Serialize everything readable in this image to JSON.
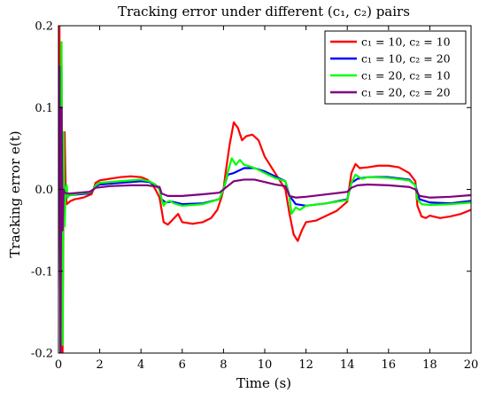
{
  "chart_data": {
    "type": "line",
    "title": "Tracking error under different (c₁, c₂) pairs",
    "xlabel": "Time (s)",
    "ylabel": "Tracking error e(t)",
    "xlim": [
      0,
      20
    ],
    "ylim": [
      -0.2,
      0.2
    ],
    "xticks": [
      "0",
      "2",
      "4",
      "6",
      "8",
      "10",
      "12",
      "14",
      "16",
      "18",
      "20"
    ],
    "yticks": [
      "-0.2",
      "-0.1",
      "0.0",
      "0.1",
      "0.2"
    ],
    "grid": false,
    "legend_position": "top-right",
    "series": [
      {
        "name": "c₁ = 10,  c₂ = 10",
        "color": "#ff0000",
        "x": [
          0,
          0.05,
          0.1,
          0.15,
          0.2,
          0.25,
          0.3,
          0.35,
          0.4,
          0.5,
          0.6,
          0.8,
          1.0,
          1.2,
          1.4,
          1.6,
          1.7,
          1.8,
          2.0,
          2.5,
          3.0,
          3.5,
          4.0,
          4.3,
          4.5,
          4.7,
          4.9,
          5.0,
          5.1,
          5.3,
          5.5,
          5.8,
          6.0,
          6.5,
          7.0,
          7.4,
          7.7,
          7.9,
          8.0,
          8.1,
          8.3,
          8.5,
          8.7,
          8.9,
          9.1,
          9.4,
          9.7,
          10.0,
          10.5,
          11.0,
          11.2,
          11.4,
          11.6,
          11.8,
          12.0,
          12.5,
          13.0,
          13.5,
          14.0,
          14.2,
          14.4,
          14.6,
          15.0,
          15.5,
          16.0,
          16.5,
          17.0,
          17.3,
          17.4,
          17.6,
          17.8,
          18.0,
          18.5,
          19.0,
          19.5,
          20.0
        ],
        "y": [
          0,
          0.2,
          -0.2,
          0.15,
          -0.2,
          0.0,
          0.07,
          0.0,
          -0.018,
          -0.016,
          -0.014,
          -0.012,
          -0.011,
          -0.01,
          -0.008,
          -0.006,
          0.0,
          0.008,
          0.011,
          0.013,
          0.015,
          0.016,
          0.015,
          0.012,
          0.008,
          0.0,
          -0.01,
          -0.025,
          -0.04,
          -0.043,
          -0.038,
          -0.03,
          -0.04,
          -0.042,
          -0.04,
          -0.035,
          -0.025,
          -0.01,
          0.0,
          0.02,
          0.055,
          0.082,
          0.075,
          0.06,
          0.065,
          0.067,
          0.06,
          0.04,
          0.02,
          0.0,
          -0.03,
          -0.055,
          -0.063,
          -0.05,
          -0.04,
          -0.038,
          -0.032,
          -0.026,
          -0.015,
          0.02,
          0.031,
          0.026,
          0.027,
          0.029,
          0.029,
          0.027,
          0.02,
          0.01,
          -0.02,
          -0.033,
          -0.035,
          -0.032,
          -0.035,
          -0.033,
          -0.03,
          -0.025
        ]
      },
      {
        "name": "c₁ = 10,  c₂ = 20",
        "color": "#0000ff",
        "x": [
          0,
          0.05,
          0.1,
          0.15,
          0.2,
          0.25,
          0.3,
          0.4,
          0.6,
          1.0,
          1.5,
          1.7,
          1.8,
          2.0,
          3.0,
          4.0,
          4.4,
          4.7,
          4.9,
          5.0,
          5.2,
          5.5,
          6.0,
          7.0,
          7.8,
          8.0,
          8.2,
          8.5,
          9.0,
          9.5,
          10.0,
          10.5,
          11.0,
          11.2,
          11.5,
          12.0,
          13.0,
          14.0,
          14.2,
          14.5,
          15.0,
          16.0,
          17.0,
          17.3,
          17.5,
          18.0,
          19.0,
          20.0
        ],
        "y": [
          0,
          0.15,
          -0.15,
          0.1,
          -0.1,
          0.02,
          0.0,
          -0.008,
          -0.007,
          -0.006,
          -0.005,
          0.0,
          0.004,
          0.006,
          0.008,
          0.01,
          0.009,
          0.005,
          0.0,
          -0.012,
          -0.016,
          -0.015,
          -0.018,
          -0.017,
          -0.012,
          0.0,
          0.018,
          0.02,
          0.026,
          0.026,
          0.022,
          0.016,
          0.01,
          -0.008,
          -0.018,
          -0.02,
          -0.017,
          -0.012,
          0.008,
          0.013,
          0.015,
          0.015,
          0.012,
          0.005,
          -0.012,
          -0.016,
          -0.017,
          -0.014
        ]
      },
      {
        "name": "c₁ = 20,  c₂ = 10",
        "color": "#00ff00",
        "x": [
          0,
          0.05,
          0.1,
          0.15,
          0.2,
          0.25,
          0.3,
          0.35,
          0.4,
          0.45,
          0.5,
          0.6,
          0.8,
          1.0,
          1.5,
          1.7,
          1.8,
          2.0,
          3.0,
          4.0,
          4.4,
          4.7,
          4.9,
          5.0,
          5.1,
          5.2,
          5.4,
          5.6,
          6.0,
          7.0,
          7.8,
          8.0,
          8.2,
          8.4,
          8.6,
          8.8,
          9.0,
          9.3,
          9.6,
          10.0,
          10.5,
          11.0,
          11.2,
          11.3,
          11.5,
          11.7,
          12.0,
          13.0,
          14.0,
          14.2,
          14.4,
          14.7,
          15.0,
          16.0,
          17.0,
          17.3,
          17.4,
          17.6,
          18.0,
          19.0,
          20.0
        ],
        "y": [
          0,
          0.12,
          -0.2,
          0.18,
          -0.19,
          0.07,
          -0.045,
          0.0,
          0.005,
          -0.01,
          -0.006,
          -0.007,
          -0.006,
          -0.005,
          -0.004,
          0.0,
          0.005,
          0.008,
          0.01,
          0.012,
          0.01,
          0.006,
          0.0,
          -0.012,
          -0.02,
          -0.016,
          -0.014,
          -0.017,
          -0.02,
          -0.018,
          -0.012,
          0.0,
          0.02,
          0.038,
          0.03,
          0.036,
          0.03,
          0.028,
          0.025,
          0.02,
          0.014,
          0.01,
          -0.01,
          -0.03,
          -0.022,
          -0.025,
          -0.02,
          -0.017,
          -0.013,
          0.008,
          0.018,
          0.013,
          0.015,
          0.014,
          0.011,
          0.005,
          -0.012,
          -0.018,
          -0.019,
          -0.018,
          -0.016
        ]
      },
      {
        "name": "c₁ = 20,  c₂ = 20",
        "color": "#800080",
        "x": [
          0,
          0.05,
          0.1,
          0.15,
          0.2,
          0.25,
          0.3,
          0.4,
          0.6,
          1.0,
          1.5,
          1.7,
          1.8,
          2.5,
          3.5,
          4.3,
          4.9,
          5.0,
          5.3,
          6.0,
          7.0,
          7.8,
          8.0,
          8.5,
          9.0,
          9.5,
          10.0,
          10.5,
          11.0,
          11.2,
          11.5,
          12.0,
          13.0,
          14.0,
          14.2,
          14.5,
          15.0,
          16.0,
          17.0,
          17.3,
          17.5,
          18.0,
          19.0,
          20.0
        ],
        "y": [
          0,
          0.15,
          -0.2,
          0.1,
          -0.05,
          0.0,
          -0.004,
          -0.005,
          -0.005,
          -0.004,
          -0.003,
          0.0,
          0.002,
          0.004,
          0.005,
          0.005,
          0.003,
          -0.005,
          -0.008,
          -0.008,
          -0.006,
          -0.004,
          0.0,
          0.01,
          0.012,
          0.012,
          0.009,
          0.006,
          0.004,
          -0.008,
          -0.01,
          -0.009,
          -0.006,
          -0.003,
          0.002,
          0.005,
          0.006,
          0.005,
          0.003,
          0.0,
          -0.008,
          -0.01,
          -0.009,
          -0.007
        ]
      }
    ]
  }
}
